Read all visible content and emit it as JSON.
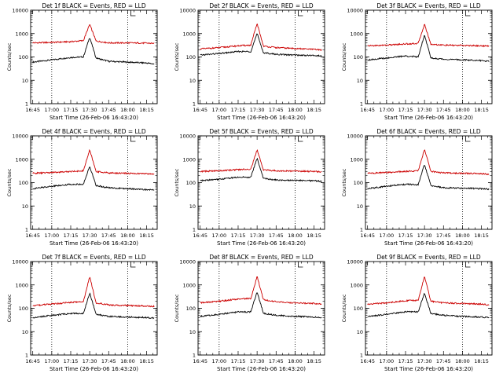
{
  "figure": {
    "panel_titles": [
      "Det 1f BLACK = Events, RED = LLD",
      "Det 2f BLACK = Events, RED = LLD",
      "Det 3f BLACK = Events, RED = LLD",
      "Det 4f BLACK = Events, RED = LLD",
      "Det 5f BLACK = Events, RED = LLD",
      "Det 6f BLACK = Events, RED = LLD",
      "Det 7f BLACK = Events, RED = LLD",
      "Det 8f BLACK = Events, RED = LLD",
      "Det 9f BLACK = Events, RED = LLD"
    ],
    "ylabel": "Counts/sec",
    "xlabel": "Start Time (26-Feb-06 16:43:20)",
    "x_tick_labels": [
      "16:45",
      "17:00",
      "17:15",
      "17:30",
      "17:45",
      "18:00",
      "18:15"
    ],
    "y_tick_labels": [
      "1",
      "10",
      "100",
      "1000",
      "10000"
    ],
    "colors": {
      "events": "#000000",
      "lld": "#cc0000",
      "axes": "#000000"
    }
  },
  "chart_data": [
    {
      "type": "line",
      "title": "Det 1f BLACK = Events, RED = LLD",
      "xlabel": "Start Time (26-Feb-06 16:43:20)",
      "ylabel": "Counts/sec",
      "y_scale": "log",
      "ylim": [
        1,
        10000
      ],
      "xlim": [
        "16:43:20",
        "18:23:20"
      ],
      "vertical_dotted_lines": [
        "17:00",
        "18:00"
      ],
      "x": [
        "16:45",
        "17:00",
        "17:15",
        "17:25",
        "17:30",
        "17:35",
        "17:45",
        "18:00",
        "18:15",
        "18:21"
      ],
      "series": [
        {
          "name": "Events",
          "values": [
            60,
            75,
            95,
            100,
            700,
            90,
            65,
            60,
            55,
            50
          ]
        },
        {
          "name": "LLD",
          "values": [
            400,
            420,
            450,
            500,
            2500,
            480,
            400,
            400,
            390,
            380
          ]
        }
      ]
    },
    {
      "type": "line",
      "title": "Det 2f BLACK = Events, RED = LLD",
      "xlabel": "Start Time (26-Feb-06 16:43:20)",
      "ylabel": "Counts/sec",
      "y_scale": "log",
      "ylim": [
        1,
        10000
      ],
      "xlim": [
        "16:43:20",
        "18:23:20"
      ],
      "vertical_dotted_lines": [
        "17:00",
        "18:00"
      ],
      "x": [
        "16:45",
        "17:00",
        "17:15",
        "17:25",
        "17:30",
        "17:35",
        "17:45",
        "18:00",
        "18:15",
        "18:21"
      ],
      "series": [
        {
          "name": "Events",
          "values": [
            120,
            140,
            170,
            170,
            1000,
            150,
            130,
            120,
            115,
            110
          ]
        },
        {
          "name": "LLD",
          "values": [
            220,
            250,
            300,
            320,
            2700,
            290,
            250,
            230,
            210,
            200
          ]
        }
      ]
    },
    {
      "type": "line",
      "title": "Det 3f BLACK = Events, RED = LLD",
      "xlabel": "Start Time (26-Feb-06 16:43:20)",
      "ylabel": "Counts/sec",
      "y_scale": "log",
      "ylim": [
        1,
        10000
      ],
      "xlim": [
        "16:43:20",
        "18:23:20"
      ],
      "vertical_dotted_lines": [
        "17:00",
        "18:00"
      ],
      "x": [
        "16:45",
        "17:00",
        "17:15",
        "17:25",
        "17:30",
        "17:35",
        "17:45",
        "18:00",
        "18:15",
        "18:21"
      ],
      "series": [
        {
          "name": "Events",
          "values": [
            75,
            90,
            110,
            100,
            900,
            90,
            80,
            75,
            70,
            65
          ]
        },
        {
          "name": "LLD",
          "values": [
            300,
            320,
            360,
            380,
            2500,
            350,
            320,
            310,
            300,
            290
          ]
        }
      ]
    },
    {
      "type": "line",
      "title": "Det 4f BLACK = Events, RED = LLD",
      "xlabel": "Start Time (26-Feb-06 16:43:20)",
      "ylabel": "Counts/sec",
      "y_scale": "log",
      "ylim": [
        1,
        10000
      ],
      "xlim": [
        "16:43:20",
        "18:23:20"
      ],
      "vertical_dotted_lines": [
        "17:00",
        "18:00"
      ],
      "x": [
        "16:45",
        "17:00",
        "17:15",
        "17:25",
        "17:30",
        "17:35",
        "17:45",
        "18:00",
        "18:15",
        "18:21"
      ],
      "series": [
        {
          "name": "Events",
          "values": [
            55,
            70,
            85,
            85,
            500,
            75,
            60,
            55,
            50,
            48
          ]
        },
        {
          "name": "LLD",
          "values": [
            250,
            270,
            300,
            320,
            2500,
            300,
            260,
            250,
            240,
            230
          ]
        }
      ]
    },
    {
      "type": "line",
      "title": "Det 5f BLACK = Events, RED = LLD",
      "xlabel": "Start Time (26-Feb-06 16:43:20)",
      "ylabel": "Counts/sec",
      "y_scale": "log",
      "ylim": [
        1,
        10000
      ],
      "xlim": [
        "16:43:20",
        "18:23:20"
      ],
      "vertical_dotted_lines": [
        "17:00",
        "18:00"
      ],
      "x": [
        "16:45",
        "17:00",
        "17:15",
        "17:25",
        "17:30",
        "17:35",
        "17:45",
        "18:00",
        "18:15",
        "18:21"
      ],
      "series": [
        {
          "name": "Events",
          "values": [
            120,
            140,
            170,
            170,
            1100,
            150,
            130,
            125,
            120,
            115
          ]
        },
        {
          "name": "LLD",
          "values": [
            300,
            320,
            360,
            380,
            2500,
            350,
            320,
            310,
            300,
            290
          ]
        }
      ]
    },
    {
      "type": "line",
      "title": "Det 6f BLACK = Events, RED = LLD",
      "xlabel": "Start Time (26-Feb-06 16:43:20)",
      "ylabel": "Counts/sec",
      "y_scale": "log",
      "ylim": [
        1,
        10000
      ],
      "xlim": [
        "16:43:20",
        "18:23:20"
      ],
      "vertical_dotted_lines": [
        "17:00",
        "18:00"
      ],
      "x": [
        "16:45",
        "17:00",
        "17:15",
        "17:25",
        "17:30",
        "17:35",
        "17:45",
        "18:00",
        "18:15",
        "18:21"
      ],
      "series": [
        {
          "name": "Events",
          "values": [
            55,
            70,
            85,
            80,
            600,
            75,
            60,
            58,
            55,
            52
          ]
        },
        {
          "name": "LLD",
          "values": [
            250,
            270,
            300,
            320,
            2700,
            300,
            260,
            250,
            240,
            230
          ]
        }
      ]
    },
    {
      "type": "line",
      "title": "Det 7f BLACK = Events, RED = LLD",
      "xlabel": "Start Time (26-Feb-06 16:43:20)",
      "ylabel": "Counts/sec",
      "y_scale": "log",
      "ylim": [
        1,
        10000
      ],
      "xlim": [
        "16:43:20",
        "18:23:20"
      ],
      "vertical_dotted_lines": [
        "17:00",
        "18:00"
      ],
      "x": [
        "16:45",
        "17:00",
        "17:15",
        "17:25",
        "17:30",
        "17:35",
        "17:45",
        "18:00",
        "18:15",
        "18:21"
      ],
      "series": [
        {
          "name": "Events",
          "values": [
            40,
            50,
            60,
            60,
            450,
            55,
            45,
            42,
            40,
            38
          ]
        },
        {
          "name": "LLD",
          "values": [
            130,
            150,
            180,
            190,
            2300,
            170,
            140,
            130,
            125,
            120
          ]
        }
      ]
    },
    {
      "type": "line",
      "title": "Det 8f BLACK = Events, RED = LLD",
      "xlabel": "Start Time (26-Feb-06 16:43:20)",
      "ylabel": "Counts/sec",
      "y_scale": "log",
      "ylim": [
        1,
        10000
      ],
      "xlim": [
        "16:43:20",
        "18:23:20"
      ],
      "vertical_dotted_lines": [
        "17:00",
        "18:00"
      ],
      "x": [
        "16:45",
        "17:00",
        "17:15",
        "17:25",
        "17:30",
        "17:35",
        "17:45",
        "18:00",
        "18:15",
        "18:21"
      ],
      "series": [
        {
          "name": "Events",
          "values": [
            45,
            55,
            70,
            70,
            500,
            60,
            50,
            45,
            42,
            40
          ]
        },
        {
          "name": "LLD",
          "values": [
            170,
            200,
            250,
            260,
            2300,
            230,
            190,
            170,
            160,
            150
          ]
        }
      ]
    },
    {
      "type": "line",
      "title": "Det 9f BLACK = Events, RED = LLD",
      "xlabel": "Start Time (26-Feb-06 16:43:20)",
      "ylabel": "Counts/sec",
      "y_scale": "log",
      "ylim": [
        1,
        10000
      ],
      "xlim": [
        "16:43:20",
        "18:23:20"
      ],
      "vertical_dotted_lines": [
        "17:00",
        "18:00"
      ],
      "x": [
        "16:45",
        "17:00",
        "17:15",
        "17:25",
        "17:30",
        "17:35",
        "17:45",
        "18:00",
        "18:15",
        "18:21"
      ],
      "series": [
        {
          "name": "Events",
          "values": [
            45,
            55,
            70,
            70,
            450,
            60,
            50,
            45,
            42,
            40
          ]
        },
        {
          "name": "LLD",
          "values": [
            150,
            170,
            210,
            220,
            2300,
            200,
            170,
            160,
            150,
            140
          ]
        }
      ]
    }
  ]
}
